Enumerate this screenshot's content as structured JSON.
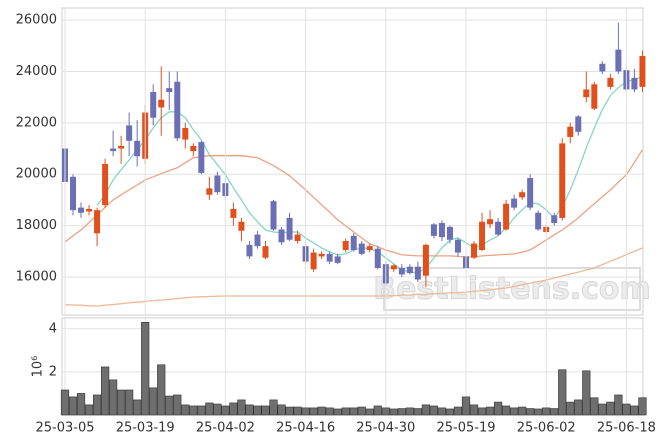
{
  "chart_data": [
    {
      "type": "candlestick",
      "up_color": "#e0501c",
      "down_color": "#6b6fb5",
      "open": [
        21000,
        19900,
        18700,
        18550,
        17700,
        18800,
        21000,
        21000,
        21900,
        21300,
        20600,
        23200,
        22600,
        23350,
        23600,
        21350,
        20900,
        21250,
        19200,
        19950,
        19650,
        18300,
        17800,
        17250,
        17650,
        16750,
        18950,
        17850,
        18300,
        17400,
        17200,
        16300,
        16800,
        16900,
        16800,
        17050,
        17600,
        17300,
        17050,
        17100,
        16500,
        16300,
        16350,
        16400,
        16400,
        16050,
        18050,
        18100,
        17950,
        17450,
        16800,
        16750,
        17050,
        18050,
        18150,
        17850,
        19050,
        19100,
        19850,
        18500,
        17750,
        18400,
        18300,
        21450,
        22250,
        23000,
        22550,
        24300,
        23400,
        24850,
        24050,
        23750,
        23400
      ],
      "high": [
        21100,
        20000,
        18900,
        18800,
        18700,
        20600,
        21700,
        21500,
        22400,
        22100,
        22700,
        23500,
        24200,
        24000,
        24000,
        22000,
        21200,
        21300,
        19900,
        20100,
        19800,
        18900,
        18300,
        17400,
        17800,
        17400,
        19000,
        17950,
        18500,
        17800,
        17300,
        17100,
        17000,
        17000,
        16900,
        17500,
        17700,
        17400,
        17300,
        17200,
        16600,
        16500,
        16500,
        16500,
        16600,
        17300,
        18100,
        18200,
        18000,
        17500,
        16900,
        17400,
        18500,
        18600,
        18300,
        19000,
        19200,
        19400,
        20000,
        18600,
        18050,
        18500,
        21400,
        22000,
        22300,
        24000,
        23600,
        24400,
        23900,
        25900,
        24200,
        24100,
        24800
      ],
      "low": [
        19500,
        18400,
        18300,
        18400,
        17200,
        18700,
        20700,
        20400,
        20700,
        20300,
        20400,
        21900,
        21500,
        22500,
        21300,
        21000,
        20700,
        20000,
        19000,
        19200,
        19000,
        18000,
        17400,
        16700,
        17100,
        16700,
        17800,
        17250,
        17400,
        17300,
        16500,
        16200,
        16700,
        16500,
        16500,
        16950,
        17000,
        16850,
        16950,
        16300,
        15700,
        16200,
        16000,
        16100,
        15800,
        15600,
        17500,
        17400,
        17300,
        16800,
        16200,
        16700,
        17000,
        17900,
        17600,
        17800,
        18600,
        19000,
        18600,
        17800,
        17700,
        18000,
        18200,
        21200,
        21500,
        22800,
        22500,
        23900,
        23300,
        23900,
        23200,
        23200,
        23200
      ],
      "close": [
        19700,
        18600,
        18500,
        18650,
        18600,
        20400,
        20900,
        21100,
        21300,
        20700,
        22400,
        22200,
        22900,
        23200,
        21400,
        21800,
        21100,
        20050,
        19450,
        19300,
        19150,
        18650,
        18150,
        16800,
        17200,
        17200,
        17850,
        17350,
        17450,
        17650,
        16600,
        16950,
        16900,
        16600,
        16550,
        17400,
        17050,
        16900,
        17200,
        16350,
        15750,
        16450,
        16100,
        16150,
        15900,
        17250,
        17600,
        17550,
        17450,
        16950,
        16350,
        17300,
        18150,
        18250,
        17650,
        18850,
        18700,
        19300,
        18700,
        17850,
        17950,
        18100,
        21200,
        21850,
        21650,
        23300,
        23500,
        24000,
        23750,
        24000,
        23300,
        23300,
        24600
      ],
      "lines": [
        {
          "color": "#86d6c4",
          "values": [
            null,
            null,
            null,
            null,
            18800,
            19200,
            19780,
            20170,
            20560,
            20950,
            21340,
            21800,
            22200,
            22430,
            22430,
            22200,
            21730,
            21340,
            20760,
            20370,
            19980,
            19470,
            19000,
            18500,
            18150,
            17830,
            17750,
            17720,
            17750,
            17750,
            17520,
            17330,
            17130,
            16980,
            16860,
            16900,
            17050,
            17130,
            17100,
            16980,
            16740,
            16510,
            16270,
            16200,
            16160,
            16350,
            16740,
            17130,
            17440,
            17520,
            17330,
            17130,
            17250,
            17440,
            17600,
            17910,
            18300,
            18610,
            18890,
            18850,
            18610,
            18300,
            18730,
            19390,
            20170,
            21030,
            21800,
            22510,
            23060,
            23370,
            23610,
            23680,
            23800
          ]
        },
        {
          "color": "#eba283",
          "values": [
            17360,
            17600,
            17830,
            18120,
            18420,
            18710,
            19000,
            19200,
            19390,
            19580,
            19780,
            19900,
            20020,
            20140,
            20250,
            20450,
            20640,
            20680,
            20720,
            20720,
            20720,
            20720,
            20720,
            20680,
            20640,
            20490,
            20330,
            20140,
            19940,
            19670,
            19390,
            19100,
            18810,
            18520,
            18220,
            17990,
            17750,
            17520,
            17290,
            17170,
            17050,
            16960,
            16860,
            16840,
            16820,
            16820,
            16820,
            16820,
            16820,
            16800,
            16780,
            16780,
            16820,
            16840,
            16860,
            16880,
            16900,
            16970,
            17050,
            17250,
            17440,
            17640,
            17830,
            18060,
            18300,
            18580,
            18850,
            19120,
            19390,
            19690,
            19980,
            20460,
            20950
          ]
        },
        {
          "color": "#edb898",
          "values": [
            14920,
            14910,
            14900,
            14880,
            14870,
            14900,
            14930,
            14960,
            14990,
            15020,
            15050,
            15080,
            15100,
            15130,
            15160,
            15190,
            15220,
            15230,
            15240,
            15250,
            15260,
            15260,
            15260,
            15260,
            15260,
            15260,
            15260,
            15260,
            15260,
            15260,
            15260,
            15260,
            15260,
            15260,
            15260,
            15260,
            15260,
            15260,
            15260,
            15260,
            15260,
            15270,
            15290,
            15300,
            15320,
            15330,
            15350,
            15360,
            15380,
            15390,
            15410,
            15440,
            15470,
            15500,
            15540,
            15570,
            15630,
            15690,
            15760,
            15820,
            15880,
            15960,
            16040,
            16120,
            16190,
            16270,
            16350,
            16480,
            16610,
            16740,
            16870,
            17000,
            17130
          ]
        }
      ],
      "ylim": [
        14520,
        26470
      ],
      "yticks": [
        16000,
        18000,
        20000,
        22000,
        24000,
        26000
      ],
      "grid": true,
      "watermark": "BestListens.com"
    },
    {
      "type": "bar",
      "color": "#6e6e6e",
      "ylabel": "10⁶",
      "categories": [
        "25-03-05",
        null,
        null,
        null,
        null,
        null,
        null,
        null,
        null,
        null,
        "25-03-19",
        null,
        null,
        null,
        null,
        null,
        null,
        null,
        null,
        null,
        "25-04-02",
        null,
        null,
        null,
        null,
        null,
        null,
        null,
        null,
        null,
        "25-04-16",
        null,
        null,
        null,
        null,
        null,
        null,
        null,
        null,
        null,
        "25-04-30",
        null,
        null,
        null,
        null,
        null,
        null,
        null,
        null,
        null,
        "25-05-19",
        null,
        null,
        null,
        null,
        null,
        null,
        null,
        null,
        null,
        "25-06-02",
        null,
        null,
        null,
        null,
        null,
        null,
        null,
        null,
        null,
        "25-06-18",
        null,
        null
      ],
      "values": [
        1.16,
        0.84,
        1.0,
        0.47,
        0.93,
        2.23,
        1.63,
        1.16,
        1.16,
        0.7,
        4.3,
        1.26,
        2.33,
        0.88,
        0.93,
        0.47,
        0.42,
        0.42,
        0.56,
        0.51,
        0.42,
        0.56,
        0.7,
        0.47,
        0.42,
        0.42,
        0.7,
        0.47,
        0.37,
        0.37,
        0.33,
        0.33,
        0.37,
        0.33,
        0.28,
        0.33,
        0.33,
        0.37,
        0.28,
        0.42,
        0.33,
        0.28,
        0.3,
        0.33,
        0.3,
        0.47,
        0.42,
        0.33,
        0.28,
        0.37,
        0.84,
        0.47,
        0.33,
        0.37,
        0.6,
        0.42,
        0.33,
        0.37,
        0.3,
        0.28,
        0.33,
        0.3,
        2.1,
        0.6,
        0.7,
        2.05,
        0.8,
        0.51,
        0.6,
        0.93,
        0.51,
        0.42,
        0.8
      ],
      "ylim": [
        0,
        4.5
      ],
      "yticks": [
        2,
        4
      ],
      "grid": true
    }
  ]
}
